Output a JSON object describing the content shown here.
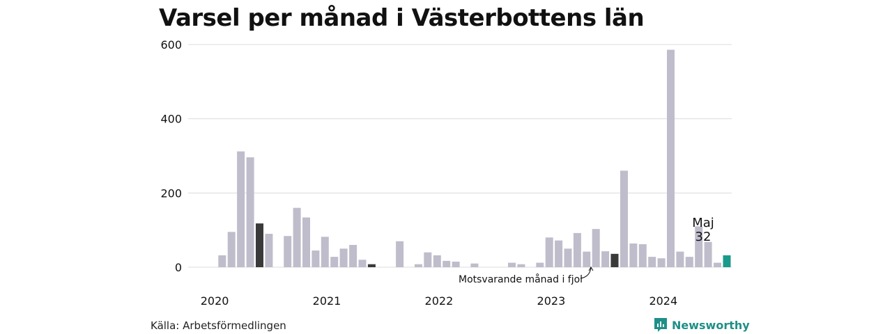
{
  "brand": {
    "name": "Newsworthy"
  },
  "chart_data": {
    "type": "bar",
    "title": "Varsel per månad i Västerbottens län",
    "source": "Källa: Arbetsförmedlingen",
    "xlabel": "",
    "ylabel": "",
    "ylim": [
      0,
      600
    ],
    "yticks": [
      0,
      200,
      400,
      600
    ],
    "year_labels": [
      "2020",
      "2021",
      "2022",
      "2023",
      "2024"
    ],
    "grid": true,
    "colors": {
      "default": "#bfbdcb",
      "previous_year": "#3a3a3a",
      "current": "#1a9a8a",
      "grid": "#dcdcdc"
    },
    "annotation_prev_year": "Motsvarande månad i fjol",
    "highlight": {
      "month_label": "Maj",
      "value_label": "32"
    },
    "series": [
      {
        "values": [
          0,
          0,
          32,
          95,
          312,
          296,
          118,
          90,
          0,
          84,
          160,
          134,
          45,
          82,
          28,
          50,
          60,
          20,
          8,
          0,
          0,
          70,
          0,
          8,
          40,
          32,
          17,
          15,
          0,
          10,
          0,
          0,
          0,
          12,
          8,
          0,
          12,
          80,
          72,
          50,
          92,
          42,
          103,
          43,
          36,
          260,
          64,
          62,
          28,
          24,
          586,
          42,
          28,
          110,
          68,
          12,
          32
        ],
        "kinds": [
          "d",
          "d",
          "d",
          "d",
          "d",
          "d",
          "p",
          "d",
          "d",
          "d",
          "d",
          "d",
          "d",
          "d",
          "d",
          "d",
          "d",
          "d",
          "p",
          "d",
          "d",
          "d",
          "d",
          "d",
          "d",
          "d",
          "d",
          "d",
          "d",
          "d",
          "d",
          "d",
          "d",
          "d",
          "d",
          "d",
          "d",
          "d",
          "d",
          "d",
          "d",
          "d",
          "d",
          "d",
          "p",
          "d",
          "d",
          "d",
          "d",
          "d",
          "d",
          "d",
          "d",
          "d",
          "d",
          "d",
          "c"
        ]
      }
    ]
  }
}
